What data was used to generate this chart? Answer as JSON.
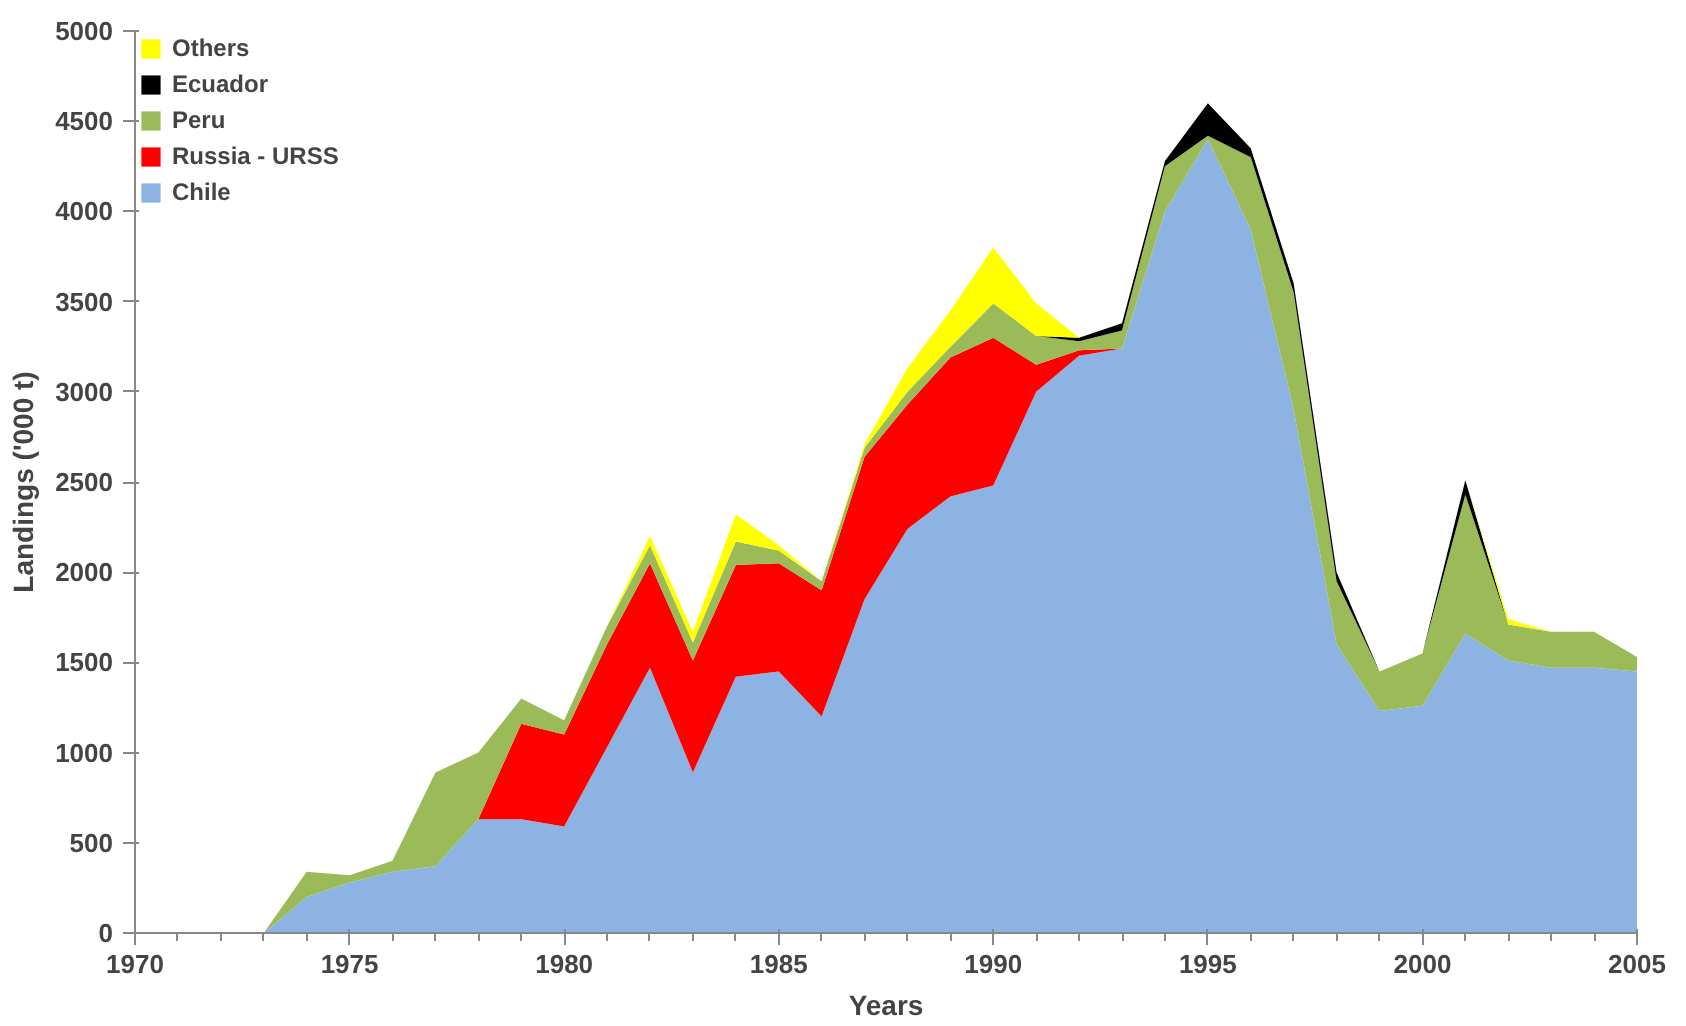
{
  "chart_data": {
    "type": "area",
    "stacked": true,
    "xlabel": "Years",
    "ylabel": "Landings ('000 t)",
    "x": [
      1973,
      1974,
      1975,
      1976,
      1977,
      1978,
      1979,
      1980,
      1981,
      1982,
      1983,
      1984,
      1985,
      1986,
      1987,
      1988,
      1989,
      1990,
      1991,
      1992,
      1993,
      1994,
      1995,
      1996,
      1997,
      1998,
      1999,
      2000,
      2001,
      2002,
      2003,
      2004,
      2005
    ],
    "series": [
      {
        "name": "Chile",
        "color": "#8db3e2",
        "values": [
          0,
          200,
          280,
          340,
          370,
          630,
          630,
          590,
          1030,
          1470,
          890,
          1420,
          1450,
          1200,
          1850,
          2240,
          2420,
          2480,
          3000,
          3200,
          3240,
          4000,
          4400,
          3900,
          2900,
          1600,
          1230,
          1260,
          1660,
          1510,
          1470,
          1470,
          1450
        ]
      },
      {
        "name": "Russia - URSS",
        "color": "#ff0000",
        "values": [
          null,
          null,
          null,
          null,
          null,
          0,
          530,
          510,
          570,
          580,
          620,
          620,
          600,
          700,
          790,
          690,
          770,
          820,
          150,
          30,
          0,
          null,
          null,
          null,
          null,
          null,
          null,
          null,
          null,
          null,
          null,
          null,
          null
        ]
      },
      {
        "name": "Peru",
        "color": "#9bbb59",
        "values": [
          0,
          140,
          40,
          60,
          520,
          370,
          140,
          80,
          100,
          100,
          100,
          130,
          70,
          50,
          50,
          70,
          60,
          190,
          160,
          50,
          100,
          250,
          20,
          400,
          650,
          350,
          220,
          290,
          770,
          200,
          200,
          200,
          80
        ]
      },
      {
        "name": "Ecuador",
        "color": "#000000",
        "values": [
          null,
          null,
          null,
          null,
          null,
          null,
          null,
          null,
          null,
          null,
          null,
          null,
          null,
          null,
          null,
          null,
          null,
          null,
          0,
          20,
          40,
          30,
          180,
          50,
          50,
          50,
          0,
          0,
          80,
          0,
          null,
          null,
          null
        ]
      },
      {
        "name": "Others",
        "color": "#ffff00",
        "values": [
          null,
          null,
          null,
          null,
          null,
          null,
          null,
          null,
          0,
          50,
          60,
          150,
          30,
          0,
          20,
          130,
          200,
          310,
          180,
          0,
          null,
          null,
          null,
          null,
          null,
          null,
          null,
          null,
          0,
          30,
          0,
          null,
          null
        ]
      }
    ],
    "xlim": [
      1970,
      2005
    ],
    "xticks": [
      1970,
      1975,
      1980,
      1985,
      1990,
      1995,
      2000,
      2005
    ],
    "ylim": [
      0,
      5000
    ],
    "yticks": [
      0,
      500,
      1000,
      1500,
      2000,
      2500,
      3000,
      3500,
      4000,
      4500,
      5000
    ],
    "grid": false,
    "legend": "top left"
  }
}
